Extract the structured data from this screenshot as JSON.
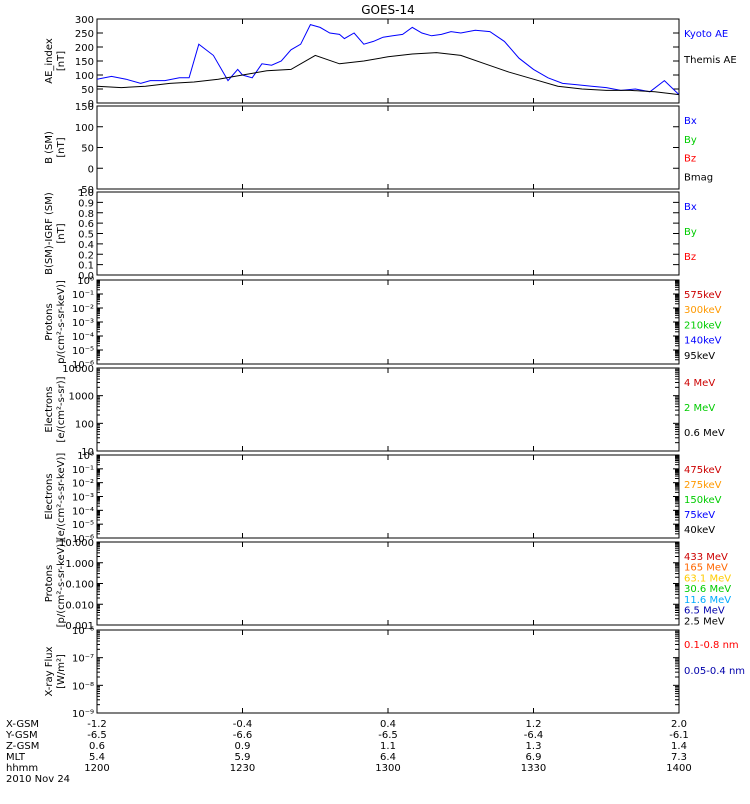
{
  "title": "GOES-14",
  "panels": [
    {
      "id": "ae",
      "ylabel_lines": [
        "AE_index",
        "[nT]"
      ],
      "scale": "linear",
      "ylim": [
        0,
        300
      ],
      "ticks": [
        "0",
        "50",
        "100",
        "150",
        "200",
        "250",
        "300"
      ],
      "legend": [
        {
          "text": "Kyoto AE",
          "color": "#0000ff"
        },
        {
          "text": "Themis AE",
          "color": "#000000"
        }
      ]
    },
    {
      "id": "b",
      "ylabel_lines": [
        "B (SM)",
        "[nT]"
      ],
      "scale": "linear",
      "ylim": [
        -60,
        180
      ],
      "ticks": [
        "-50",
        "0",
        "50",
        "100",
        "150"
      ],
      "legend": [
        {
          "text": "Bx",
          "color": "#0000ff"
        },
        {
          "text": "By",
          "color": "#00cc00"
        },
        {
          "text": "Bz",
          "color": "#ff0000"
        },
        {
          "text": "Bmag",
          "color": "#000000"
        }
      ]
    },
    {
      "id": "bd",
      "ylabel_lines": [
        "B(SM)-IGRF (SM)",
        "[nT]"
      ],
      "scale": "linear",
      "ylim": [
        0,
        1
      ],
      "ticks": [
        "0.0",
        "0.1",
        "0.2",
        "0.4",
        "0.5",
        "0.6",
        "0.8",
        "0.9",
        "1.0"
      ],
      "legend": [
        {
          "text": "Bx",
          "color": "#0000ff"
        },
        {
          "text": "By",
          "color": "#00cc00"
        },
        {
          "text": "Bz",
          "color": "#ff0000"
        }
      ]
    },
    {
      "id": "protons1",
      "ylabel_lines": [
        "Protons",
        "p/(cm²-s-sr-keV)]"
      ],
      "scale": "log",
      "ylim": [
        1e-06,
        1
      ],
      "ticks": [
        "10⁻⁶",
        "10⁻⁵",
        "10⁻⁴",
        "10⁻³",
        "10⁻²",
        "10⁻¹",
        "10⁰"
      ],
      "legend": [
        {
          "text": "575keV",
          "color": "#cc0000"
        },
        {
          "text": "300keV",
          "color": "#ff9900"
        },
        {
          "text": "210keV",
          "color": "#00cc00"
        },
        {
          "text": "140keV",
          "color": "#0000ff"
        },
        {
          "text": "95keV",
          "color": "#000000"
        }
      ]
    },
    {
      "id": "electrons1",
      "ylabel_lines": [
        "Electrons",
        "[e/(cm²-s-sr)]"
      ],
      "scale": "log",
      "ylim": [
        10,
        10000
      ],
      "ticks": [
        "10",
        "100",
        "1000",
        "10000"
      ],
      "legend": [
        {
          "text": "4 MeV",
          "color": "#cc0000"
        },
        {
          "text": "2 MeV",
          "color": "#00cc00"
        },
        {
          "text": "0.6 MeV",
          "color": "#000000"
        }
      ]
    },
    {
      "id": "electrons2",
      "ylabel_lines": [
        "Electrons",
        "[e/(cm²-s-sr-keV)]"
      ],
      "scale": "log",
      "ylim": [
        1e-06,
        1
      ],
      "ticks": [
        "10⁻⁶",
        "10⁻⁵",
        "10⁻⁴",
        "10⁻³",
        "10⁻²",
        "10⁻¹",
        "10⁰"
      ],
      "legend": [
        {
          "text": "475keV",
          "color": "#cc0000"
        },
        {
          "text": "275keV",
          "color": "#ff9900"
        },
        {
          "text": "150keV",
          "color": "#00cc00"
        },
        {
          "text": "75keV",
          "color": "#0000ff"
        },
        {
          "text": "40keV",
          "color": "#000000"
        }
      ]
    },
    {
      "id": "protons2",
      "ylabel_lines": [
        "Protons",
        "[p/(cm²-s-sr-keV)]"
      ],
      "scale": "log",
      "ylim": [
        0.001,
        10
      ],
      "ticks": [
        "0.001",
        "0.010",
        "0.100",
        "1.000",
        "10.000"
      ],
      "legend": [
        {
          "text": "433 MeV",
          "color": "#cc0000"
        },
        {
          "text": "165 MeV",
          "color": "#ff6600"
        },
        {
          "text": "63.1 MeV",
          "color": "#ffcc00"
        },
        {
          "text": "30.6 MeV",
          "color": "#00cc00"
        },
        {
          "text": "11.6 MeV",
          "color": "#00aaff"
        },
        {
          "text": "6.5 MeV",
          "color": "#0000aa"
        },
        {
          "text": "2.5 MeV",
          "color": "#000000"
        }
      ]
    },
    {
      "id": "xray",
      "ylabel_lines": [
        "X-ray Flux",
        "[W/m²]"
      ],
      "scale": "log",
      "ylim": [
        1e-09,
        1e-06
      ],
      "ticks": [
        "10⁻⁹",
        "10⁻⁸",
        "10⁻⁷",
        "10⁻⁶"
      ],
      "legend": [
        {
          "text": "0.1-0.8 nm",
          "color": "#ff0000"
        },
        {
          "text": "0.05-0.4 nm",
          "color": "#0000aa"
        }
      ]
    }
  ],
  "footer": {
    "rows": [
      {
        "label": "X-GSM",
        "values": [
          "-1.2",
          "-0.4",
          "0.4",
          "1.2",
          "2.0"
        ]
      },
      {
        "label": "Y-GSM",
        "values": [
          "-6.5",
          "-6.6",
          "-6.5",
          "-6.4",
          "-6.1"
        ]
      },
      {
        "label": "Z-GSM",
        "values": [
          "0.6",
          "0.9",
          "1.1",
          "1.3",
          "1.4"
        ]
      },
      {
        "label": "MLT",
        "values": [
          "5.4",
          "5.9",
          "6.4",
          "6.9",
          "7.3"
        ]
      },
      {
        "label": "hhmm",
        "values": [
          "1200",
          "1230",
          "1300",
          "1330",
          "1400"
        ]
      }
    ],
    "date": "2010 Nov 24"
  },
  "chart_data": {
    "type": "line",
    "title": "GOES-14",
    "xlabel": "hhmm",
    "xlim": [
      "1200",
      "1400"
    ],
    "series": [
      {
        "name": "Kyoto AE",
        "color": "#0000ff",
        "x": [
          0,
          3,
          6,
          9,
          11,
          14,
          17,
          19,
          21,
          24,
          27,
          29,
          30,
          32,
          34,
          36,
          38,
          40,
          42,
          44,
          46,
          48,
          50,
          51,
          52,
          53,
          55,
          57,
          59,
          61,
          63,
          65,
          67,
          69,
          71,
          73,
          75,
          78,
          81,
          84,
          87,
          90,
          93,
          96,
          99,
          102,
          105,
          108,
          111,
          114,
          117,
          120
        ],
        "y": [
          85,
          95,
          85,
          70,
          80,
          80,
          90,
          90,
          210,
          170,
          80,
          120,
          100,
          90,
          140,
          135,
          150,
          190,
          210,
          280,
          270,
          250,
          245,
          230,
          240,
          250,
          210,
          220,
          235,
          240,
          245,
          270,
          250,
          240,
          245,
          255,
          250,
          260,
          255,
          220,
          160,
          120,
          90,
          70,
          65,
          60,
          55,
          45,
          50,
          40,
          80,
          30
        ]
      },
      {
        "name": "Themis AE",
        "color": "#000000",
        "x": [
          0,
          5,
          10,
          15,
          20,
          25,
          30,
          35,
          40,
          45,
          50,
          55,
          60,
          65,
          70,
          75,
          80,
          85,
          90,
          95,
          100,
          105,
          110,
          115,
          120
        ],
        "y": [
          60,
          55,
          60,
          70,
          75,
          85,
          100,
          115,
          120,
          170,
          140,
          150,
          165,
          175,
          180,
          170,
          140,
          110,
          85,
          60,
          50,
          45,
          45,
          40,
          30
        ]
      }
    ]
  }
}
